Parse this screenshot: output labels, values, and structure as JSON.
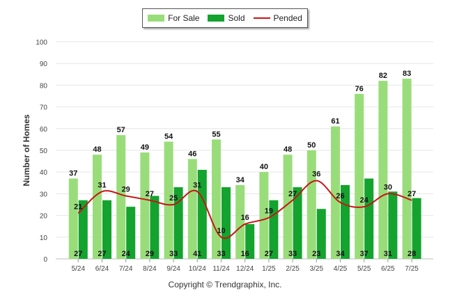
{
  "chart_data": {
    "type": "bar",
    "categories": [
      "5/24",
      "6/24",
      "7/24",
      "8/24",
      "9/24",
      "10/24",
      "11/24",
      "12/24",
      "1/25",
      "2/25",
      "3/25",
      "4/25",
      "5/25",
      "6/25",
      "7/25"
    ],
    "series": [
      {
        "name": "For Sale",
        "type": "bar",
        "color": "#99dd7a",
        "values": [
          37,
          48,
          57,
          49,
          54,
          46,
          55,
          34,
          40,
          48,
          50,
          61,
          76,
          82,
          83
        ]
      },
      {
        "name": "Sold",
        "type": "bar",
        "color": "#14a32e",
        "values": [
          27,
          27,
          24,
          29,
          33,
          41,
          33,
          16,
          27,
          33,
          23,
          34,
          37,
          31,
          28
        ]
      },
      {
        "name": "Pended",
        "type": "line",
        "color": "#c81414",
        "values": [
          21,
          31,
          29,
          27,
          25,
          31,
          10,
          16,
          19,
          27,
          36,
          26,
          24,
          30,
          27
        ]
      }
    ],
    "title": "",
    "xlabel": "",
    "ylabel": "Number of Homes",
    "ylim": [
      0,
      100
    ],
    "yticks": [
      0,
      10,
      20,
      30,
      40,
      50,
      60,
      70,
      80,
      90,
      100
    ],
    "grid": true,
    "legend": "top-center"
  },
  "copyright": "Copyright © Trendgraphix, Inc."
}
